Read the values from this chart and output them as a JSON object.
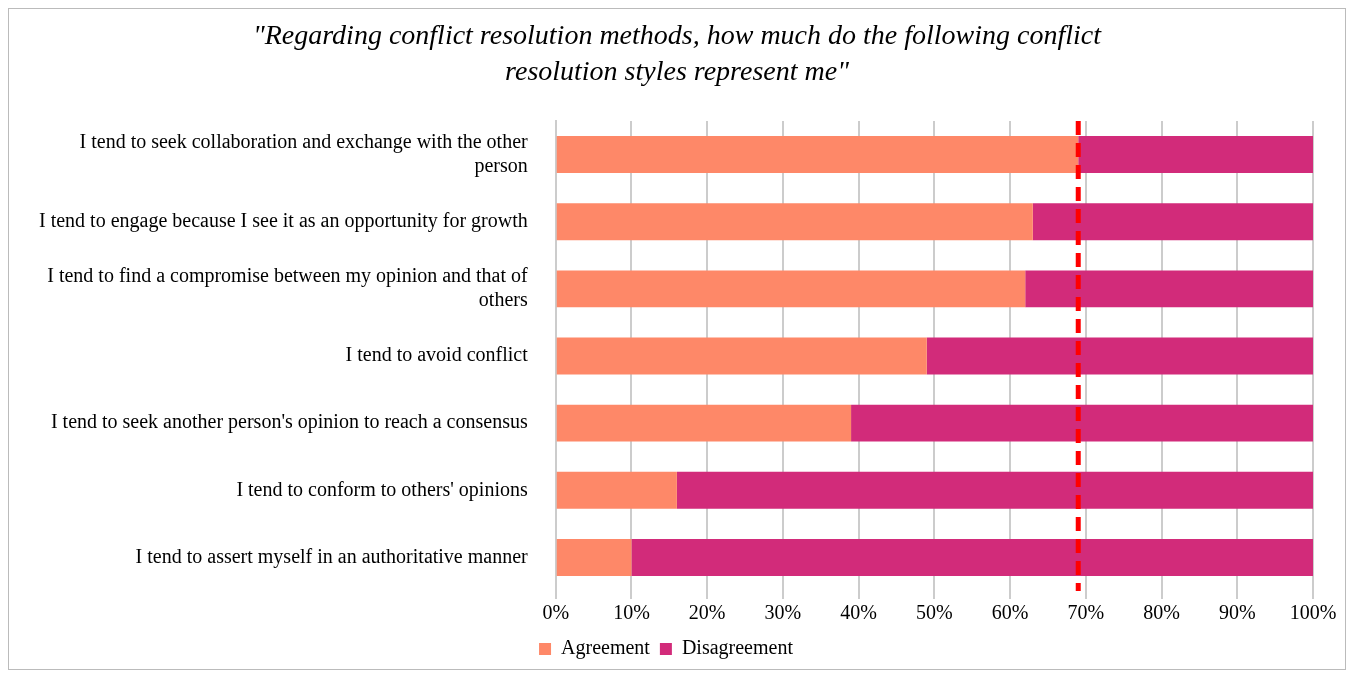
{
  "chart_data": {
    "type": "bar",
    "orientation": "horizontal",
    "stacked": true,
    "title": "\"Regarding conflict resolution methods, how much do the following conflict resolution styles  represent me\"",
    "categories": [
      "I tend to seek collaboration and exchange with the other person",
      "I tend to engage because I see it as an opportunity for growth",
      "I tend to find a compromise between my opinion and that of others",
      "I tend to avoid conflict",
      "I tend to seek another person's opinion to reach a consensus",
      "I tend to conform to others' opinions",
      "I tend to assert myself in an authoritative manner"
    ],
    "series": [
      {
        "name": "Agreement",
        "color": "#fe8868",
        "values": [
          69,
          63,
          62,
          49,
          39,
          16,
          10
        ]
      },
      {
        "name": "Disagreement",
        "color": "#d22b7a",
        "values": [
          31,
          37,
          38,
          51,
          61,
          84,
          90
        ]
      }
    ],
    "xlim": [
      0,
      100
    ],
    "xticks": [
      {
        "value": 0,
        "label": "0%"
      },
      {
        "value": 10,
        "label": "10%"
      },
      {
        "value": 20,
        "label": "20%"
      },
      {
        "value": 30,
        "label": "30%"
      },
      {
        "value": 40,
        "label": "40%"
      },
      {
        "value": 50,
        "label": "50%"
      },
      {
        "value": 60,
        "label": "60%"
      },
      {
        "value": 70,
        "label": "70%"
      },
      {
        "value": 80,
        "label": "80%"
      },
      {
        "value": 90,
        "label": "90%"
      },
      {
        "value": 100,
        "label": "100%"
      }
    ],
    "grid": "x",
    "legend": "bottom",
    "ref_lines": [
      {
        "axis": "x",
        "value": 69,
        "color": "#ff0000",
        "line_style": "dashed"
      }
    ]
  }
}
